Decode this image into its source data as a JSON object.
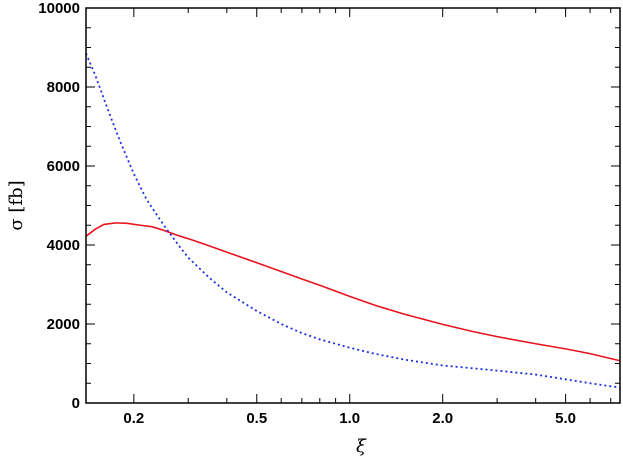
{
  "chart_data": {
    "type": "line",
    "xscale": "log",
    "xlim": [
      0.14,
      7.5
    ],
    "ylim": [
      0,
      10000
    ],
    "xlabel": "ξ",
    "ylabel": "σ [fb]",
    "grid": false,
    "x_ticks": [
      {
        "value": 0.2,
        "label": "0.2"
      },
      {
        "value": 0.5,
        "label": "0.5"
      },
      {
        "value": 1.0,
        "label": "1.0"
      },
      {
        "value": 2.0,
        "label": "2.0"
      },
      {
        "value": 5.0,
        "label": "5.0"
      }
    ],
    "y_ticks": [
      {
        "value": 0,
        "label": "0"
      },
      {
        "value": 2000,
        "label": "2000"
      },
      {
        "value": 4000,
        "label": "4000"
      },
      {
        "value": 6000,
        "label": "6000"
      },
      {
        "value": 8000,
        "label": "8000"
      },
      {
        "value": 10000,
        "label": "10000"
      }
    ],
    "series": [
      {
        "color": "#e8141e",
        "dash": "solid",
        "points": [
          [
            0.14,
            4220
          ],
          [
            0.15,
            4400
          ],
          [
            0.16,
            4520
          ],
          [
            0.175,
            4560
          ],
          [
            0.19,
            4550
          ],
          [
            0.21,
            4500
          ],
          [
            0.23,
            4460
          ],
          [
            0.25,
            4370
          ],
          [
            0.28,
            4230
          ],
          [
            0.3,
            4160
          ],
          [
            0.35,
            3980
          ],
          [
            0.4,
            3820
          ],
          [
            0.5,
            3550
          ],
          [
            0.6,
            3330
          ],
          [
            0.7,
            3140
          ],
          [
            0.8,
            2980
          ],
          [
            1.0,
            2700
          ],
          [
            1.2,
            2480
          ],
          [
            1.5,
            2250
          ],
          [
            2.0,
            1990
          ],
          [
            2.5,
            1810
          ],
          [
            3.0,
            1680
          ],
          [
            4.0,
            1500
          ],
          [
            5.0,
            1370
          ],
          [
            6.0,
            1250
          ],
          [
            7.5,
            1070
          ]
        ]
      },
      {
        "color": "#1e2ee0",
        "dash": "dotted",
        "points": [
          [
            0.14,
            8850
          ],
          [
            0.15,
            8300
          ],
          [
            0.16,
            7700
          ],
          [
            0.17,
            7150
          ],
          [
            0.18,
            6650
          ],
          [
            0.2,
            5800
          ],
          [
            0.22,
            5150
          ],
          [
            0.25,
            4500
          ],
          [
            0.28,
            3980
          ],
          [
            0.3,
            3680
          ],
          [
            0.35,
            3180
          ],
          [
            0.4,
            2800
          ],
          [
            0.5,
            2330
          ],
          [
            0.6,
            2000
          ],
          [
            0.7,
            1770
          ],
          [
            0.8,
            1610
          ],
          [
            1.0,
            1400
          ],
          [
            1.2,
            1250
          ],
          [
            1.5,
            1100
          ],
          [
            2.0,
            950
          ],
          [
            2.5,
            880
          ],
          [
            3.0,
            820
          ],
          [
            4.0,
            720
          ],
          [
            5.0,
            600
          ],
          [
            6.0,
            500
          ],
          [
            7.5,
            390
          ]
        ]
      }
    ]
  }
}
